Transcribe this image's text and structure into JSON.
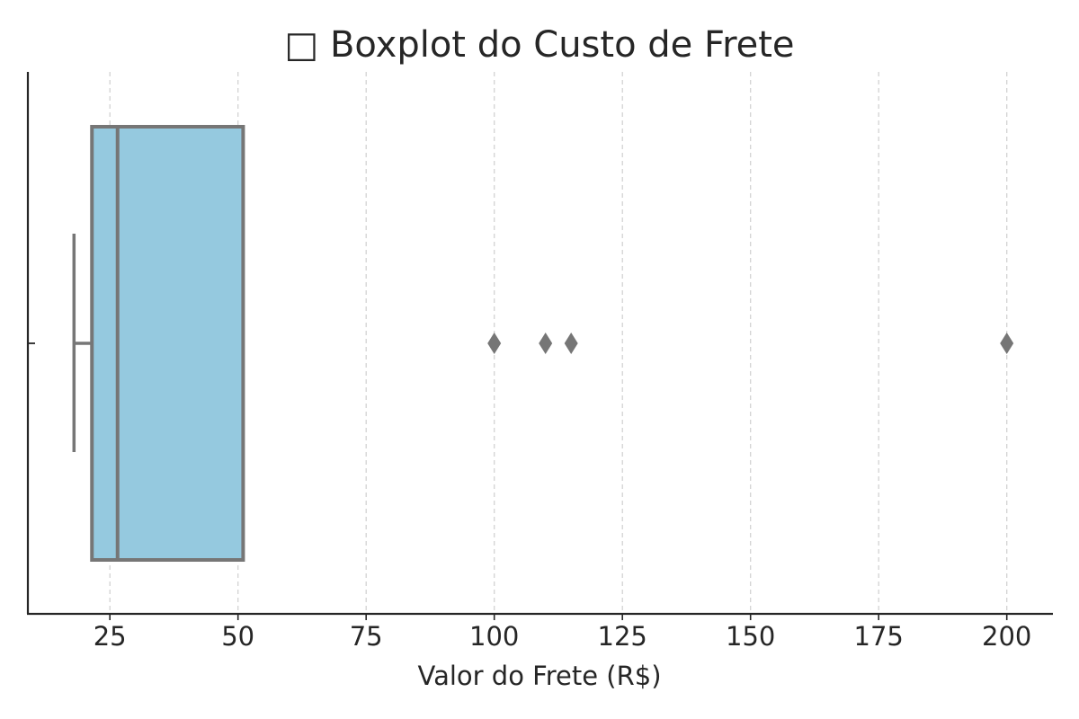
{
  "chart_data": {
    "type": "boxplot",
    "orientation": "horizontal",
    "title": "□ Boxplot do Custo de Frete",
    "xlabel": "Valor do Frete (R$)",
    "ylabel": "",
    "xlim": [
      9,
      209
    ],
    "x_ticks": [
      25,
      50,
      75,
      100,
      125,
      150,
      175,
      200
    ],
    "x_tick_labels": [
      "25",
      "50",
      "75",
      "100",
      "125",
      "150",
      "175",
      "200"
    ],
    "grid": "vertical, dashed",
    "box": {
      "whisker_low": 18,
      "q1": 21.5,
      "median": 26.5,
      "q3": 51,
      "whisker_high": 51,
      "outliers": [
        100,
        110,
        115,
        200
      ]
    },
    "colors": {
      "box_fill": "#95c9df",
      "box_edge": "#767676",
      "axis": "#262626",
      "grid": "#cfcfcf",
      "outlier": "#767676"
    }
  }
}
